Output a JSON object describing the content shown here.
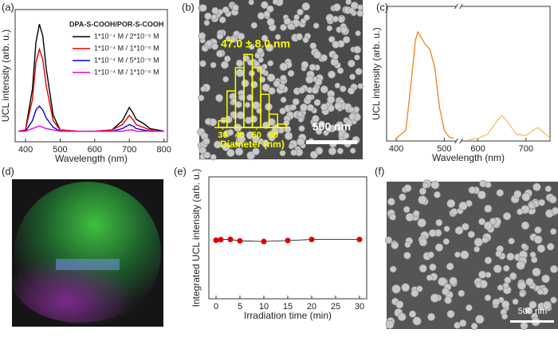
{
  "chart_data": [
    {
      "type": "line",
      "panel": "(a)",
      "xlabel": "Wavelength (nm)",
      "ylabel": "UCL intensity (arb. u.)",
      "legend_title": "DPA-S-COOH/POR-S-COOH",
      "legend": "upper right",
      "x": [
        380,
        400,
        420,
        430,
        440,
        450,
        460,
        480,
        500,
        550,
        600,
        650,
        680,
        700,
        710,
        720,
        740,
        760,
        780,
        800
      ],
      "xlim": [
        370,
        810
      ],
      "xticks": [
        400,
        500,
        600,
        700,
        800
      ],
      "ylim": [
        0,
        100
      ],
      "series": [
        {
          "name": "1*10⁻⁴ M / 2*10⁻⁵ M",
          "color": "#000000",
          "values": [
            8,
            9,
            40,
            75,
            89,
            80,
            55,
            20,
            9,
            8,
            8,
            9,
            16,
            26,
            22,
            17,
            14,
            10,
            9,
            8
          ]
        },
        {
          "name": "1*10⁻⁴ M / 1*10⁻⁵ M",
          "color": "#e00000",
          "values": [
            8,
            9,
            32,
            60,
            70,
            62,
            42,
            16,
            9,
            8,
            8,
            9,
            13,
            20,
            17,
            13,
            11,
            9,
            8,
            8
          ]
        },
        {
          "name": "1*10⁻⁴ M / 5*10⁻⁵ M",
          "color": "#0000e0",
          "values": [
            8,
            8,
            16,
            24,
            27,
            24,
            18,
            11,
            8,
            8,
            8,
            8,
            10,
            13,
            12,
            10,
            9,
            8,
            8,
            8
          ]
        },
        {
          "name": "1*10⁻⁴ M / 1*10⁻⁶ M",
          "color": "#e000e0",
          "values": [
            8,
            8,
            10,
            11,
            12,
            11,
            10,
            9,
            8,
            8,
            8,
            8,
            8,
            9,
            9,
            8,
            8,
            8,
            8,
            8
          ]
        }
      ]
    },
    {
      "type": "histogram",
      "panel": "(b)",
      "annotation": "47.0 ± 8.0 nm",
      "xlabel": "Diameter (nm)",
      "scale_bar": "500 nm",
      "bins": [
        27.5,
        32.5,
        37.5,
        42.5,
        47.5,
        52.5,
        57.5,
        62.5,
        67.5
      ],
      "values": [
        2,
        11,
        18,
        22,
        18,
        10,
        4,
        1
      ],
      "color": "#ffff00",
      "xlim": [
        25,
        70
      ],
      "xticks": [
        30,
        40,
        50,
        60
      ],
      "ylim": [
        0,
        24
      ]
    },
    {
      "type": "line",
      "panel": "(c)",
      "xlabel": "Wavelength (nm)",
      "ylabel": "UCL intensity (arb. u.)",
      "xlim": [
        380,
        750
      ],
      "xbreak": [
        530,
        560
      ],
      "xticks": [
        400,
        500,
        600,
        700
      ],
      "ylim": [
        0,
        100
      ],
      "series": [
        {
          "color": "#f08a24",
          "x": [
            400,
            420,
            430,
            440,
            445,
            450,
            460,
            470,
            480,
            490,
            500,
            510,
            520
          ],
          "values": [
            2,
            8,
            40,
            75,
            81,
            78,
            72,
            68,
            55,
            25,
            8,
            3,
            2
          ]
        },
        {
          "color": "#f5c07a",
          "x": [
            580,
            600,
            620,
            640,
            650,
            660,
            680,
            700,
            715,
            725,
            735,
            750
          ],
          "values": [
            1,
            2,
            5,
            15,
            19,
            15,
            5,
            4,
            8,
            10,
            7,
            2
          ]
        }
      ]
    },
    {
      "type": "line",
      "panel": "(e)",
      "xlabel": "Irradiation time (min)",
      "ylabel": "Integrated UCL intensity (arb. u.)",
      "x": [
        0,
        1,
        3,
        5,
        10,
        15,
        20,
        30
      ],
      "xlim": [
        -1.5,
        31.5
      ],
      "xticks": [
        0,
        5,
        10,
        15,
        20,
        25,
        30
      ],
      "ylim": [
        0,
        100
      ],
      "markers": true,
      "series": [
        {
          "color": "#e00000",
          "line_color": "#000000",
          "values": [
            48,
            48.5,
            48.7,
            47.5,
            47,
            47.8,
            48.6,
            48.6
          ]
        }
      ]
    }
  ],
  "images": [
    {
      "panel": "(d)"
    },
    {
      "panel": "(f)",
      "scale_bar": "500 nm"
    }
  ]
}
